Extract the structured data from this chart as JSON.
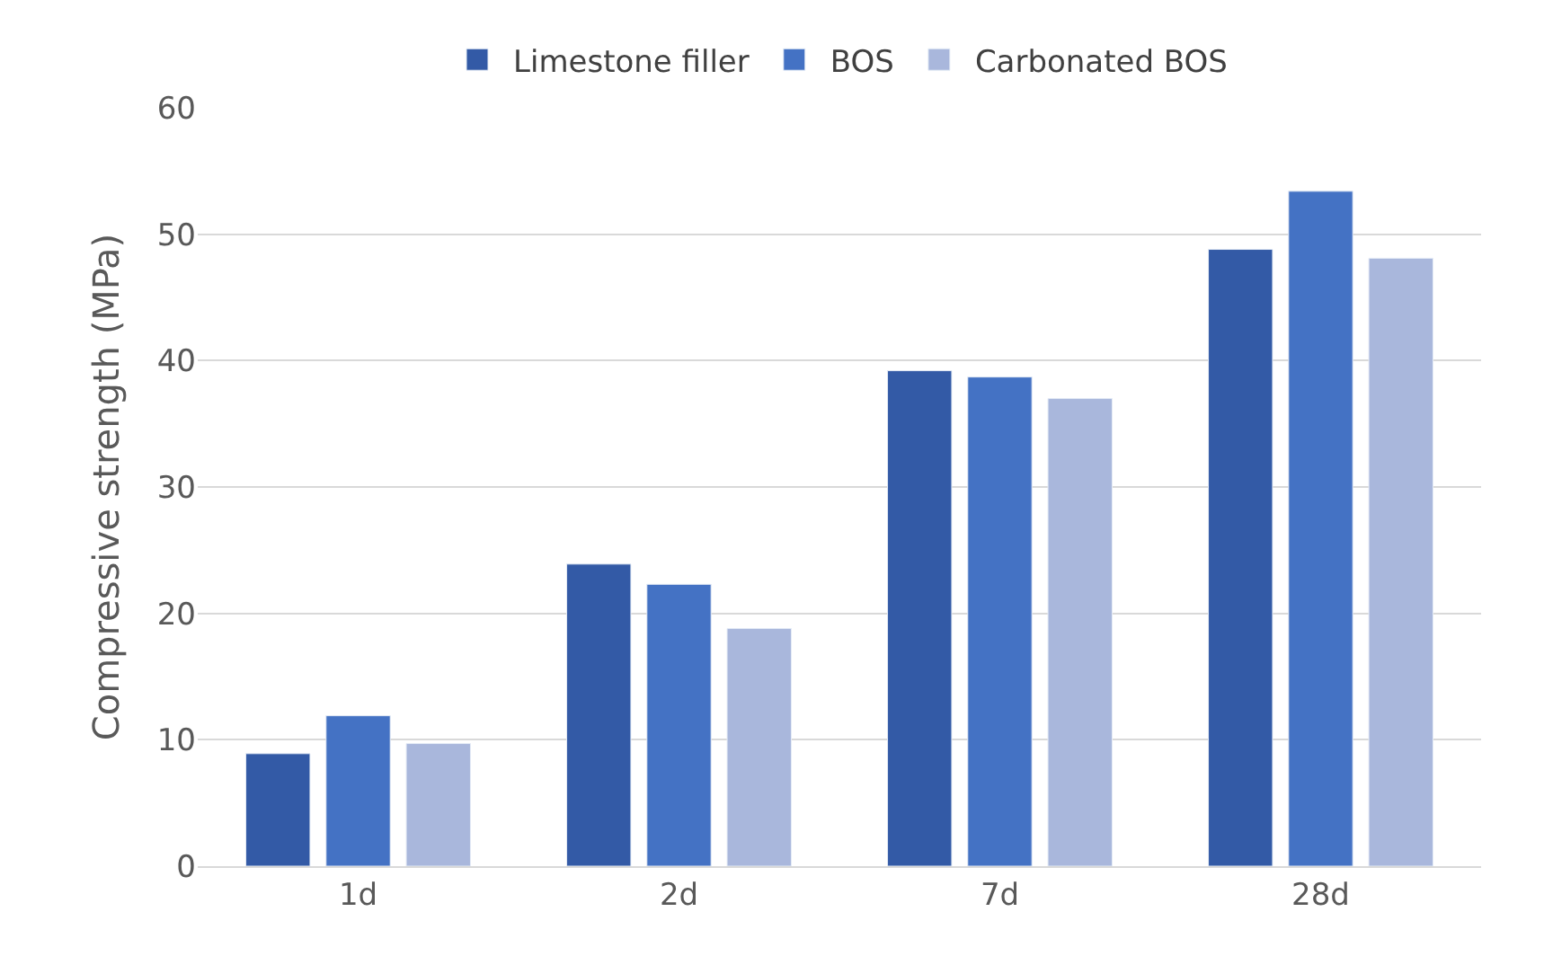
{
  "chart_data": {
    "type": "bar",
    "ylabel": "Compressive strength (MPa)",
    "categories": [
      "1d",
      "2d",
      "7d",
      "28d"
    ],
    "series": [
      {
        "name": "Limestone filler",
        "color": "#335aa6",
        "values": [
          8.9,
          23.9,
          39.2,
          48.8
        ]
      },
      {
        "name": "BOS",
        "color": "#4472c4",
        "values": [
          11.9,
          22.3,
          38.7,
          53.4
        ]
      },
      {
        "name": "Carbonated BOS",
        "color": "#a9b7dc",
        "values": [
          9.7,
          18.8,
          37.0,
          48.1
        ]
      }
    ],
    "ylim": [
      0,
      60
    ],
    "yticks": [
      0,
      10,
      20,
      30,
      40,
      50,
      60
    ],
    "grid": "y",
    "legend": "top"
  }
}
